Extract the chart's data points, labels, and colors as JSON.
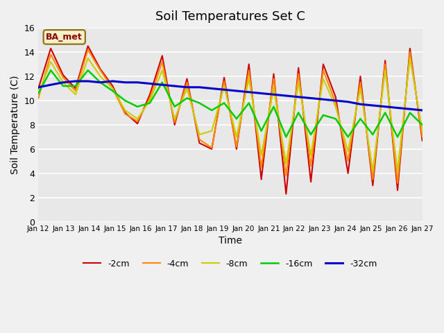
{
  "title": "Soil Temperatures Set C",
  "xlabel": "Time",
  "ylabel": "Soil Temperature (C)",
  "annotation": "BA_met",
  "ylim": [
    0,
    16
  ],
  "yticks": [
    0,
    2,
    4,
    6,
    8,
    10,
    12,
    14,
    16
  ],
  "x_labels": [
    "Jan 12",
    "Jan 13",
    "Jan 14",
    "Jan 15",
    "Jan 16",
    "Jan 17",
    "Jan 18",
    "Jan 19",
    "Jan 20",
    "Jan 21",
    "Jan 22",
    "Jan 23",
    "Jan 24",
    "Jan 25",
    "Jan 26",
    "Jan 27"
  ],
  "colors": {
    "-2cm": "#cc0000",
    "-4cm": "#ff8800",
    "-8cm": "#cccc00",
    "-16cm": "#00cc00",
    "-32cm": "#0000cc"
  },
  "legend_labels": [
    "-2cm",
    "-4cm",
    "-8cm",
    "-16cm",
    "-32cm"
  ],
  "fig_bg": "#f0f0f0",
  "plot_bg": "#e8e8e8",
  "series": {
    "-2cm": [
      11.0,
      14.3,
      12.1,
      11.0,
      14.5,
      12.6,
      11.2,
      9.0,
      8.1,
      10.5,
      13.7,
      8.0,
      11.8,
      6.5,
      6.0,
      11.9,
      6.0,
      13.0,
      3.5,
      12.2,
      2.3,
      12.7,
      3.3,
      13.0,
      10.3,
      4.0,
      12.0,
      3.0,
      13.3,
      2.6,
      14.3,
      6.7
    ],
    "-4cm": [
      10.2,
      13.8,
      11.9,
      10.8,
      14.2,
      12.5,
      11.0,
      8.9,
      8.3,
      10.2,
      13.2,
      8.2,
      11.5,
      6.8,
      6.1,
      11.6,
      6.2,
      12.5,
      4.5,
      11.8,
      3.8,
      12.2,
      4.6,
      12.5,
      9.8,
      5.0,
      11.5,
      3.5,
      13.0,
      3.2,
      14.0,
      7.0
    ],
    "-8cm": [
      10.6,
      13.2,
      11.5,
      10.5,
      13.5,
      12.0,
      11.0,
      9.2,
      8.5,
      10.0,
      12.5,
      8.5,
      11.0,
      7.2,
      7.5,
      11.2,
      7.0,
      11.8,
      5.5,
      11.0,
      4.8,
      11.5,
      5.5,
      11.8,
      9.5,
      5.8,
      11.0,
      4.2,
      12.5,
      4.2,
      13.5,
      7.5
    ],
    "-16cm": [
      10.6,
      12.5,
      11.2,
      11.2,
      12.5,
      11.5,
      10.8,
      10.0,
      9.5,
      9.8,
      11.5,
      9.5,
      10.2,
      9.8,
      9.2,
      9.8,
      8.5,
      9.8,
      7.5,
      9.5,
      7.0,
      9.0,
      7.2,
      8.8,
      8.5,
      7.0,
      8.5,
      7.2,
      9.0,
      7.0,
      9.0,
      8.0
    ],
    "-32cm": [
      11.1,
      11.3,
      11.5,
      11.6,
      11.6,
      11.5,
      11.6,
      11.5,
      11.5,
      11.4,
      11.3,
      11.2,
      11.1,
      11.1,
      11.0,
      10.9,
      10.8,
      10.7,
      10.6,
      10.5,
      10.4,
      10.3,
      10.2,
      10.1,
      10.0,
      9.9,
      9.7,
      9.6,
      9.5,
      9.4,
      9.3,
      9.2
    ]
  }
}
